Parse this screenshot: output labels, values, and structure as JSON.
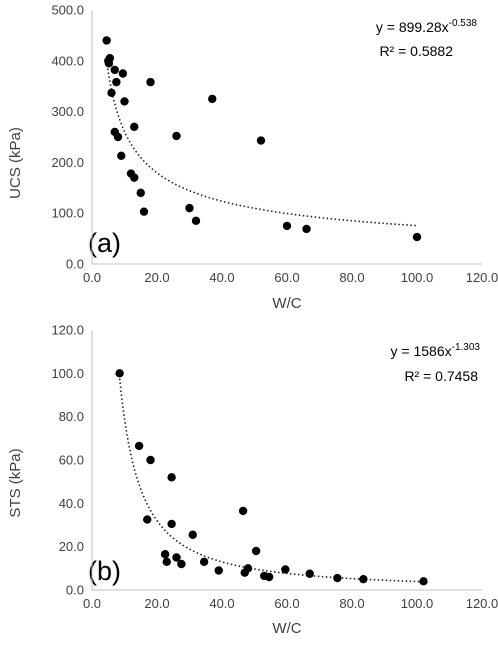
{
  "chart_data": [
    {
      "type": "scatter",
      "panel_label": "(a)",
      "xlabel": "W/C",
      "ylabel": "UCS (kPa)",
      "xlim": [
        0,
        120
      ],
      "ylim": [
        0,
        500
      ],
      "x_ticks": [
        "0.0",
        "20.0",
        "40.0",
        "60.0",
        "80.0",
        "100.0",
        "120.0"
      ],
      "y_ticks": [
        "0.0",
        "100.0",
        "200.0",
        "300.0",
        "400.0",
        "500.0"
      ],
      "grid": false,
      "trendline": {
        "type": "power",
        "coef": 899.28,
        "exponent": -0.538,
        "x_range": [
          4.5,
          100
        ]
      },
      "equation": {
        "prefix": "y = 899.28x",
        "exponent": "-0.538",
        "r2": "R² = 0.5882"
      },
      "points": [
        [
          4.5,
          440
        ],
        [
          5,
          400
        ],
        [
          5.2,
          395
        ],
        [
          5.5,
          405
        ],
        [
          6,
          337
        ],
        [
          7,
          382
        ],
        [
          7.5,
          358
        ],
        [
          9.5,
          375
        ],
        [
          10,
          320
        ],
        [
          18,
          358
        ],
        [
          37,
          325
        ],
        [
          7,
          260
        ],
        [
          8,
          250
        ],
        [
          9,
          213
        ],
        [
          13,
          270
        ],
        [
          12,
          178
        ],
        [
          13,
          170
        ],
        [
          15,
          140
        ],
        [
          16,
          103
        ],
        [
          26,
          252
        ],
        [
          30,
          110
        ],
        [
          32,
          85
        ],
        [
          52,
          243
        ],
        [
          60,
          75
        ],
        [
          66,
          69
        ],
        [
          100,
          53
        ]
      ]
    },
    {
      "type": "scatter",
      "panel_label": "(b)",
      "xlabel": "W/C",
      "ylabel": "STS (kPa)",
      "xlim": [
        0,
        120
      ],
      "ylim": [
        0,
        120
      ],
      "x_ticks": [
        "0.0",
        "20.0",
        "40.0",
        "60.0",
        "80.0",
        "100.0",
        "120.0"
      ],
      "y_ticks": [
        "0.0",
        "20.0",
        "40.0",
        "60.0",
        "80.0",
        "100.0",
        "120.0"
      ],
      "grid": false,
      "trendline": {
        "type": "power",
        "coef": 1586,
        "exponent": -1.303,
        "x_range": [
          8.5,
          102
        ]
      },
      "equation": {
        "prefix": "y = 1586x",
        "exponent": "-1.303",
        "r2": "R² = 0.7458"
      },
      "points": [
        [
          8.5,
          100
        ],
        [
          14.5,
          66.5
        ],
        [
          18,
          60
        ],
        [
          24.5,
          52
        ],
        [
          17,
          32.5
        ],
        [
          24.5,
          30.5
        ],
        [
          31,
          25.5
        ],
        [
          22.5,
          16.5
        ],
        [
          23,
          13
        ],
        [
          26,
          15
        ],
        [
          27.5,
          12
        ],
        [
          34.5,
          13
        ],
        [
          39,
          9
        ],
        [
          46.5,
          36.5
        ],
        [
          47,
          8
        ],
        [
          48,
          10
        ],
        [
          50.5,
          18
        ],
        [
          53,
          6.5
        ],
        [
          54.5,
          6
        ],
        [
          59.5,
          9.5
        ],
        [
          67,
          7.5
        ],
        [
          75.5,
          5.5
        ],
        [
          83.5,
          5
        ],
        [
          102,
          4
        ]
      ]
    }
  ]
}
